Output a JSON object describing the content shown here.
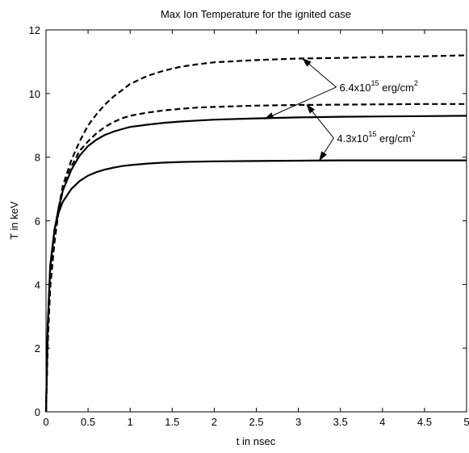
{
  "chart_data": {
    "type": "line",
    "title": "Max Ion Temperature for the ignited case",
    "xlabel": "t in nsec",
    "ylabel": "T in keV",
    "xlim": [
      0,
      5
    ],
    "ylim": [
      0,
      12
    ],
    "xticks": [
      "0",
      "0.5",
      "1",
      "1.5",
      "2",
      "2.5",
      "3",
      "3.5",
      "4",
      "4.5",
      "5"
    ],
    "yticks": [
      "0",
      "2",
      "4",
      "6",
      "8",
      "10",
      "12"
    ],
    "grid": false,
    "legend": "none",
    "series": [
      {
        "style": "dashed",
        "color": "#000000",
        "points": [
          [
            0,
            0
          ],
          [
            0.02,
            2.2
          ],
          [
            0.05,
            4.0
          ],
          [
            0.1,
            5.4
          ],
          [
            0.15,
            6.4
          ],
          [
            0.2,
            7.1
          ],
          [
            0.3,
            7.9
          ],
          [
            0.4,
            8.5
          ],
          [
            0.5,
            9.0
          ],
          [
            0.6,
            9.35
          ],
          [
            0.7,
            9.65
          ],
          [
            0.8,
            9.9
          ],
          [
            0.9,
            10.1
          ],
          [
            1.0,
            10.3
          ],
          [
            1.2,
            10.55
          ],
          [
            1.4,
            10.72
          ],
          [
            1.6,
            10.84
          ],
          [
            1.8,
            10.92
          ],
          [
            2.0,
            10.98
          ],
          [
            2.5,
            11.05
          ],
          [
            3.0,
            11.1
          ],
          [
            3.5,
            11.12
          ],
          [
            4.0,
            11.15
          ],
          [
            4.5,
            11.17
          ],
          [
            5.0,
            11.2
          ]
        ]
      },
      {
        "style": "dashed",
        "color": "#000000",
        "points": [
          [
            0,
            0
          ],
          [
            0.02,
            2.1
          ],
          [
            0.05,
            3.9
          ],
          [
            0.1,
            5.3
          ],
          [
            0.15,
            6.3
          ],
          [
            0.2,
            6.95
          ],
          [
            0.3,
            7.7
          ],
          [
            0.4,
            8.2
          ],
          [
            0.5,
            8.5
          ],
          [
            0.6,
            8.75
          ],
          [
            0.7,
            8.95
          ],
          [
            0.8,
            9.1
          ],
          [
            0.9,
            9.22
          ],
          [
            1.0,
            9.3
          ],
          [
            1.2,
            9.4
          ],
          [
            1.4,
            9.47
          ],
          [
            1.6,
            9.52
          ],
          [
            1.8,
            9.56
          ],
          [
            2.0,
            9.58
          ],
          [
            2.5,
            9.62
          ],
          [
            3.0,
            9.64
          ],
          [
            3.5,
            9.65
          ],
          [
            4.0,
            9.66
          ],
          [
            4.5,
            9.67
          ],
          [
            5.0,
            9.67
          ]
        ]
      },
      {
        "style": "solid",
        "color": "#000000",
        "points": [
          [
            0,
            0
          ],
          [
            0.02,
            2.6
          ],
          [
            0.05,
            4.5
          ],
          [
            0.1,
            5.7
          ],
          [
            0.15,
            6.4
          ],
          [
            0.2,
            6.95
          ],
          [
            0.3,
            7.6
          ],
          [
            0.4,
            8.05
          ],
          [
            0.5,
            8.35
          ],
          [
            0.6,
            8.55
          ],
          [
            0.7,
            8.7
          ],
          [
            0.8,
            8.8
          ],
          [
            0.9,
            8.88
          ],
          [
            1.0,
            8.95
          ],
          [
            1.2,
            9.02
          ],
          [
            1.4,
            9.08
          ],
          [
            1.6,
            9.12
          ],
          [
            1.8,
            9.15
          ],
          [
            2.0,
            9.18
          ],
          [
            2.5,
            9.22
          ],
          [
            3.0,
            9.25
          ],
          [
            3.5,
            9.27
          ],
          [
            4.0,
            9.28
          ],
          [
            4.5,
            9.29
          ],
          [
            5.0,
            9.3
          ]
        ]
      },
      {
        "style": "solid",
        "color": "#000000",
        "points": [
          [
            0,
            0
          ],
          [
            0.02,
            2.7
          ],
          [
            0.05,
            4.6
          ],
          [
            0.1,
            5.7
          ],
          [
            0.15,
            6.25
          ],
          [
            0.2,
            6.6
          ],
          [
            0.3,
            7.0
          ],
          [
            0.4,
            7.25
          ],
          [
            0.5,
            7.42
          ],
          [
            0.6,
            7.53
          ],
          [
            0.7,
            7.61
          ],
          [
            0.8,
            7.67
          ],
          [
            0.9,
            7.72
          ],
          [
            1.0,
            7.75
          ],
          [
            1.2,
            7.8
          ],
          [
            1.4,
            7.83
          ],
          [
            1.6,
            7.85
          ],
          [
            1.8,
            7.86
          ],
          [
            2.0,
            7.87
          ],
          [
            2.5,
            7.88
          ],
          [
            3.0,
            7.89
          ],
          [
            3.5,
            7.9
          ],
          [
            4.0,
            7.9
          ],
          [
            4.5,
            7.9
          ],
          [
            5.0,
            7.9
          ]
        ]
      }
    ],
    "annotations": [
      {
        "id": "upper",
        "prefix": "6.4x10",
        "exponent": "15",
        "unit": " erg/cm",
        "unit_exponent": "2",
        "text_at": [
          3.45,
          10.2
        ],
        "arrows": [
          {
            "from": [
              3.45,
              10.2
            ],
            "to": [
              3.05,
              11.1
            ]
          },
          {
            "from": [
              3.45,
              10.2
            ],
            "to": [
              2.6,
              9.2
            ]
          }
        ]
      },
      {
        "id": "lower",
        "prefix": "4.3x10",
        "exponent": "15",
        "unit": " erg/cm",
        "unit_exponent": "2",
        "text_at": [
          3.42,
          8.6
        ],
        "arrows": [
          {
            "from": [
              3.42,
              8.6
            ],
            "to": [
              3.1,
              9.65
            ]
          },
          {
            "from": [
              3.42,
              8.6
            ],
            "to": [
              3.25,
              7.9
            ]
          }
        ]
      }
    ]
  }
}
